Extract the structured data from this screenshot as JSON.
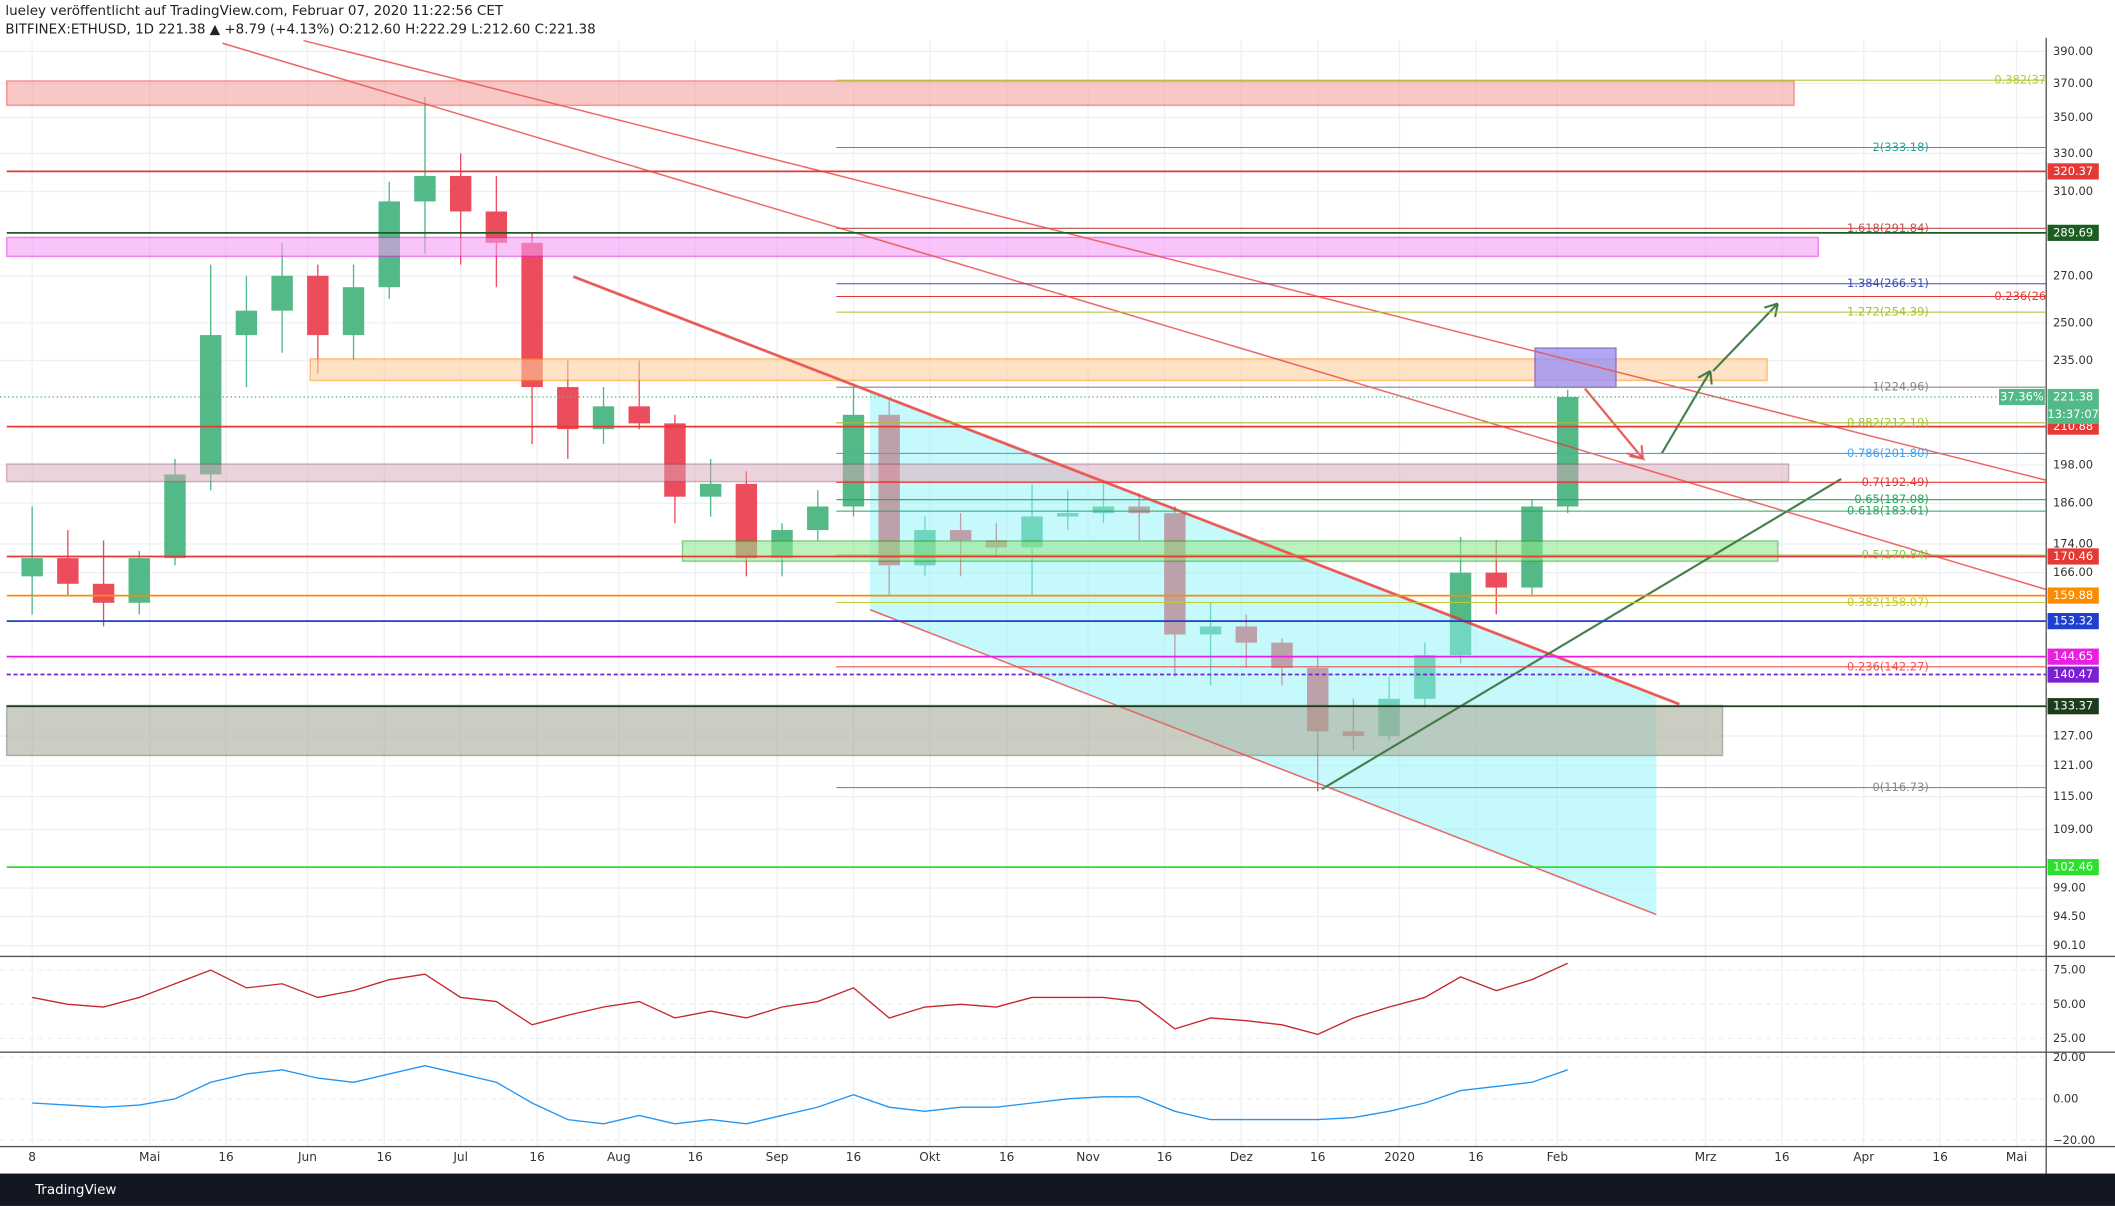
{
  "header": {
    "line1": "lueley veröffentlicht auf TradingView.com, Februar 07, 2020 11:22:56 CET",
    "line2": "BITFINEX:ETHUSD, 1D 221.38 ▲ +8.79 (+4.13%) O:212.60 H:222.29 L:212.60 C:221.38"
  },
  "footer": {
    "brand": "TradingView"
  },
  "chart_data": [
    {
      "type": "candlestick",
      "log_scale": true,
      "grid": true,
      "up_color": "#53b987",
      "down_color": "#eb4d5c",
      "categories": [
        null,
        null,
        null,
        null,
        null,
        null,
        null,
        null,
        null,
        null,
        null,
        null,
        null,
        null,
        null,
        null,
        null,
        null,
        null,
        null,
        null,
        null,
        null,
        null,
        null,
        null,
        null,
        null,
        null,
        null,
        null,
        null,
        null,
        null,
        null,
        null,
        null,
        null,
        null,
        null,
        null,
        null,
        null,
        null
      ],
      "open": [
        165,
        170,
        163,
        158,
        170,
        195,
        245,
        255,
        270,
        245,
        265,
        305,
        318,
        300,
        285,
        225,
        210,
        218,
        212,
        188,
        192,
        170,
        178,
        185,
        215,
        168,
        178,
        175,
        173,
        182,
        183,
        185,
        183,
        150,
        152,
        148,
        142,
        128,
        127,
        135,
        145,
        166,
        162,
        185
      ],
      "high": [
        185,
        178,
        175,
        172,
        200,
        275,
        270,
        285,
        275,
        275,
        315,
        362,
        330,
        318,
        290,
        235,
        225,
        235,
        215,
        200,
        196,
        180,
        190,
        225,
        220,
        182,
        183,
        180,
        192,
        190,
        193,
        189,
        185,
        158,
        155,
        149,
        145,
        135,
        140,
        148,
        176,
        175,
        187,
        224
      ],
      "low": [
        155,
        160,
        152,
        155,
        168,
        190,
        225,
        238,
        230,
        235,
        260,
        280,
        275,
        265,
        205,
        200,
        205,
        210,
        180,
        182,
        165,
        165,
        175,
        182,
        160,
        165,
        165,
        170,
        160,
        178,
        180,
        175,
        140,
        138,
        142,
        138,
        116,
        124,
        126,
        133,
        143,
        155,
        160,
        183
      ],
      "close": [
        170,
        163,
        158,
        170,
        195,
        245,
        255,
        270,
        245,
        265,
        305,
        318,
        300,
        285,
        225,
        210,
        218,
        212,
        188,
        192,
        170,
        178,
        185,
        215,
        168,
        178,
        175,
        173,
        182,
        183,
        185,
        183,
        150,
        152,
        148,
        142,
        128,
        127,
        135,
        145,
        166,
        162,
        185,
        221.38
      ],
      "xlim": [
        -0.9,
        56.4
      ],
      "xticks": [
        {
          "value": 0,
          "label": "8"
        },
        {
          "value": 3.29,
          "label": "Mai"
        },
        {
          "value": 5.43,
          "label": "16"
        },
        {
          "value": 7.71,
          "label": "Jun"
        },
        {
          "value": 9.86,
          "label": "16"
        },
        {
          "value": 12,
          "label": "Jul"
        },
        {
          "value": 14.14,
          "label": "16"
        },
        {
          "value": 16.43,
          "label": "Aug"
        },
        {
          "value": 18.57,
          "label": "16"
        },
        {
          "value": 20.86,
          "label": "Sep"
        },
        {
          "value": 23,
          "label": "16"
        },
        {
          "value": 25.14,
          "label": "Okt"
        },
        {
          "value": 27.29,
          "label": "16"
        },
        {
          "value": 29.57,
          "label": "Nov"
        },
        {
          "value": 31.71,
          "label": "16"
        },
        {
          "value": 33.86,
          "label": "Dez"
        },
        {
          "value": 36,
          "label": "16"
        },
        {
          "value": 38.29,
          "label": "2020"
        },
        {
          "value": 40.43,
          "label": "16"
        },
        {
          "value": 42.71,
          "label": "Feb"
        },
        {
          "value": 46.86,
          "label": "Mrz"
        },
        {
          "value": 49,
          "label": "16"
        },
        {
          "value": 51.29,
          "label": "Apr"
        },
        {
          "value": 53.43,
          "label": "16"
        },
        {
          "value": 55.57,
          "label": "Mai"
        }
      ],
      "ylim": [
        89.3,
        397
      ],
      "yticks": [
        {
          "value": 390,
          "label": "390.00"
        },
        {
          "value": 370,
          "label": "370.00"
        },
        {
          "value": 350,
          "label": "350.00"
        },
        {
          "value": 330,
          "label": "330.00"
        },
        {
          "value": 310,
          "label": "310.00"
        },
        {
          "value": 270,
          "label": "270.00"
        },
        {
          "value": 250,
          "label": "250.00"
        },
        {
          "value": 235,
          "label": "235.00"
        },
        {
          "value": 198,
          "label": "198.00"
        },
        {
          "value": 186,
          "label": "186.00"
        },
        {
          "value": 174,
          "label": "174.00"
        },
        {
          "value": 166,
          "label": "166.00"
        },
        {
          "value": 127,
          "label": "127.00"
        },
        {
          "value": 121,
          "label": "121.00"
        },
        {
          "value": 115,
          "label": "115.00"
        },
        {
          "value": 109,
          "label": "109.00"
        },
        {
          "value": 99,
          "label": "99.00"
        },
        {
          "value": 94.5,
          "label": "94.50"
        },
        {
          "value": 90.1,
          "label": "90.10"
        }
      ],
      "levels": [
        {
          "value": 320.37,
          "color": "#e53935"
        },
        {
          "value": 289.69,
          "color": "#1b5e20"
        },
        {
          "value": 210.88,
          "color": "#e53935"
        },
        {
          "value": 170.46,
          "color": "#e53935"
        },
        {
          "value": 159.88,
          "color": "#fb8c00"
        },
        {
          "value": 153.32,
          "color": "#1e3fd0"
        },
        {
          "value": 144.65,
          "color": "#e91ee0"
        },
        {
          "value": 140.47,
          "color": "#7b1fd2"
        },
        {
          "value": 133.37,
          "color": "#1c3a1c"
        },
        {
          "value": 102.46,
          "color": "#2ee02e"
        }
      ],
      "fib_levels": [
        {
          "value": 372,
          "label": "0.382(37",
          "color": "#b5c934"
        },
        {
          "value": 333.18,
          "label": "2(333.18)",
          "color": "#26a69a"
        },
        {
          "value": 291.84,
          "label": "1.618(291.84)",
          "color": "#c0504d"
        },
        {
          "value": 266.51,
          "label": "1.384(266.51)",
          "color": "#3f51b5"
        },
        {
          "value": 261,
          "label": "0.236(26",
          "color": "#e53935"
        },
        {
          "value": 254.39,
          "label": "1.272(254.39)",
          "color": "#a8c030"
        },
        {
          "value": 224.96,
          "label": "1(224.96)",
          "color": "#888888"
        },
        {
          "value": 212.19,
          "label": "0.882(212.19)",
          "color": "#a8c030"
        },
        {
          "value": 201.8,
          "label": "0.786(201.80)",
          "color": "#42a5f5"
        },
        {
          "value": 192.49,
          "label": "0.7(192.49)",
          "color": "#e53935"
        },
        {
          "value": 187.08,
          "label": "0.65(187.08)",
          "color": "#26a65b"
        },
        {
          "value": 183.61,
          "label": "0.618(183.61)",
          "color": "#26a65b"
        },
        {
          "value": 170.84,
          "label": "0.5(170.84)",
          "color": "#8bc34a"
        },
        {
          "value": 158.07,
          "label": "0.382(158.07)",
          "color": "#c0ca33"
        },
        {
          "value": 142.27,
          "label": "0.236(142.27)",
          "color": "#ef5350"
        },
        {
          "value": 116.73,
          "label": "0(116.73)",
          "color": "#888888"
        }
      ],
      "last_price": 221.38,
      "last_price_color": "#53b987",
      "change_label": "37.36%",
      "countdown": "13:37:07"
    },
    {
      "type": "line",
      "ylim": [
        15,
        85
      ],
      "yticks": [
        {
          "value": 75,
          "label": "75.00"
        },
        {
          "value": 50,
          "label": "50.00"
        },
        {
          "value": 25,
          "label": "25.00"
        }
      ],
      "series": [
        {
          "color": "#c62828",
          "values": [
            55,
            50,
            48,
            55,
            65,
            75,
            62,
            65,
            55,
            60,
            68,
            72,
            55,
            52,
            35,
            42,
            48,
            52,
            40,
            45,
            40,
            48,
            52,
            62,
            40,
            48,
            50,
            48,
            55,
            55,
            55,
            52,
            32,
            40,
            38,
            35,
            28,
            40,
            48,
            55,
            70,
            60,
            68,
            80
          ]
        }
      ]
    },
    {
      "type": "line",
      "ylim": [
        -23,
        22.5
      ],
      "yticks": [
        {
          "value": 20,
          "label": "20.00"
        },
        {
          "value": 0,
          "label": "0.00"
        },
        {
          "value": -20,
          "label": "−20.00"
        }
      ],
      "series": [
        {
          "color": "#2196f3",
          "values": [
            -2,
            -3,
            -4,
            -3,
            0,
            8,
            12,
            14,
            10,
            8,
            12,
            16,
            12,
            8,
            -2,
            -10,
            -12,
            -8,
            -12,
            -10,
            -12,
            -8,
            -4,
            2,
            -4,
            -6,
            -4,
            -4,
            -2,
            0,
            1,
            1,
            -6,
            -10,
            -10,
            -10,
            -10,
            -9,
            -6,
            -2,
            4,
            6,
            8,
            14
          ]
        }
      ]
    }
  ]
}
